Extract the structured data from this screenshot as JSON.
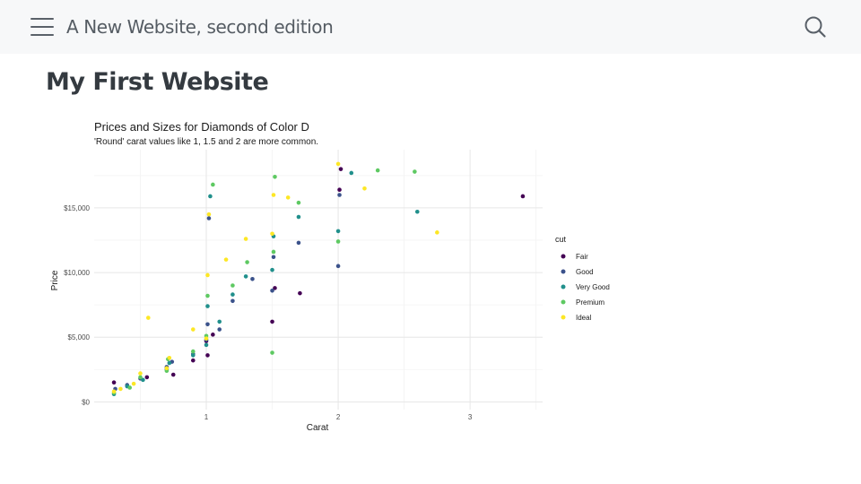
{
  "header": {
    "site_title": "A New Website, second edition",
    "menu_icon": "hamburger-menu-icon",
    "search_icon": "search-icon"
  },
  "main": {
    "page_title": "My First Website"
  },
  "chart_data": {
    "type": "scatter",
    "title": "Prices and Sizes for Diamonds of Color D",
    "subtitle": "'Round' carat values like 1, 1.5 and 2 are more common.",
    "xlabel": "Carat",
    "ylabel": "Price",
    "xlim": [
      0.15,
      3.55
    ],
    "ylim": [
      -600,
      19500
    ],
    "x_ticks": [
      1,
      2,
      3
    ],
    "x_tick_labels": [
      "1",
      "2",
      "3"
    ],
    "y_ticks": [
      0,
      5000,
      10000,
      15000
    ],
    "y_tick_labels": [
      "$0",
      "$5,000",
      "$10,000",
      "$15,000"
    ],
    "grid": true,
    "legend_title": "cut",
    "legend_position": "right",
    "series": [
      {
        "name": "Fair",
        "color": "#440154",
        "x": [
          0.3,
          0.55,
          0.7,
          0.75,
          0.9,
          1.0,
          1.01,
          1.05,
          1.5,
          1.52,
          1.71,
          2.01,
          2.02,
          3.4
        ],
        "y": [
          1500,
          1900,
          2600,
          2100,
          3200,
          4700,
          3600,
          5200,
          6200,
          8800,
          8400,
          16400,
          18000,
          15900
        ]
      },
      {
        "name": "Good",
        "color": "#3b528b",
        "x": [
          0.31,
          0.4,
          0.5,
          0.7,
          0.74,
          0.9,
          1.0,
          1.01,
          1.02,
          1.1,
          1.2,
          1.35,
          1.5,
          1.51,
          1.7,
          2.0,
          2.01
        ],
        "y": [
          1000,
          1300,
          1800,
          2700,
          3100,
          3700,
          4800,
          6000,
          14200,
          5600,
          7800,
          9500,
          8600,
          11200,
          12300,
          10500,
          16000
        ]
      },
      {
        "name": "Very Good",
        "color": "#21908c",
        "x": [
          0.3,
          0.4,
          0.52,
          0.7,
          0.72,
          0.9,
          1.0,
          1.01,
          1.03,
          1.1,
          1.2,
          1.3,
          1.5,
          1.51,
          1.7,
          2.0,
          2.1,
          2.6
        ],
        "y": [
          600,
          1200,
          1700,
          2500,
          3000,
          3600,
          4400,
          7400,
          15900,
          6200,
          8300,
          9700,
          10200,
          12800,
          14300,
          13200,
          17700,
          14700
        ]
      },
      {
        "name": "Premium",
        "color": "#5ec962",
        "x": [
          0.3,
          0.42,
          0.5,
          0.7,
          0.71,
          0.9,
          1.0,
          1.01,
          1.05,
          1.2,
          1.31,
          1.5,
          1.51,
          1.52,
          1.7,
          2.0,
          2.3,
          2.58
        ],
        "y": [
          700,
          1100,
          1900,
          2400,
          3300,
          3900,
          5100,
          8200,
          16800,
          9000,
          10800,
          3800,
          11600,
          17400,
          15400,
          12400,
          17900,
          17800
        ]
      },
      {
        "name": "Ideal",
        "color": "#fde725",
        "x": [
          0.3,
          0.35,
          0.45,
          0.5,
          0.56,
          0.7,
          0.72,
          0.9,
          1.0,
          1.01,
          1.02,
          1.15,
          1.3,
          1.5,
          1.51,
          1.62,
          2.0,
          2.2,
          2.75
        ],
        "y": [
          800,
          1000,
          1400,
          2200,
          6500,
          2600,
          3400,
          5600,
          4900,
          9800,
          14500,
          11000,
          12600,
          13000,
          16000,
          15800,
          18400,
          16500,
          13100
        ]
      }
    ]
  }
}
